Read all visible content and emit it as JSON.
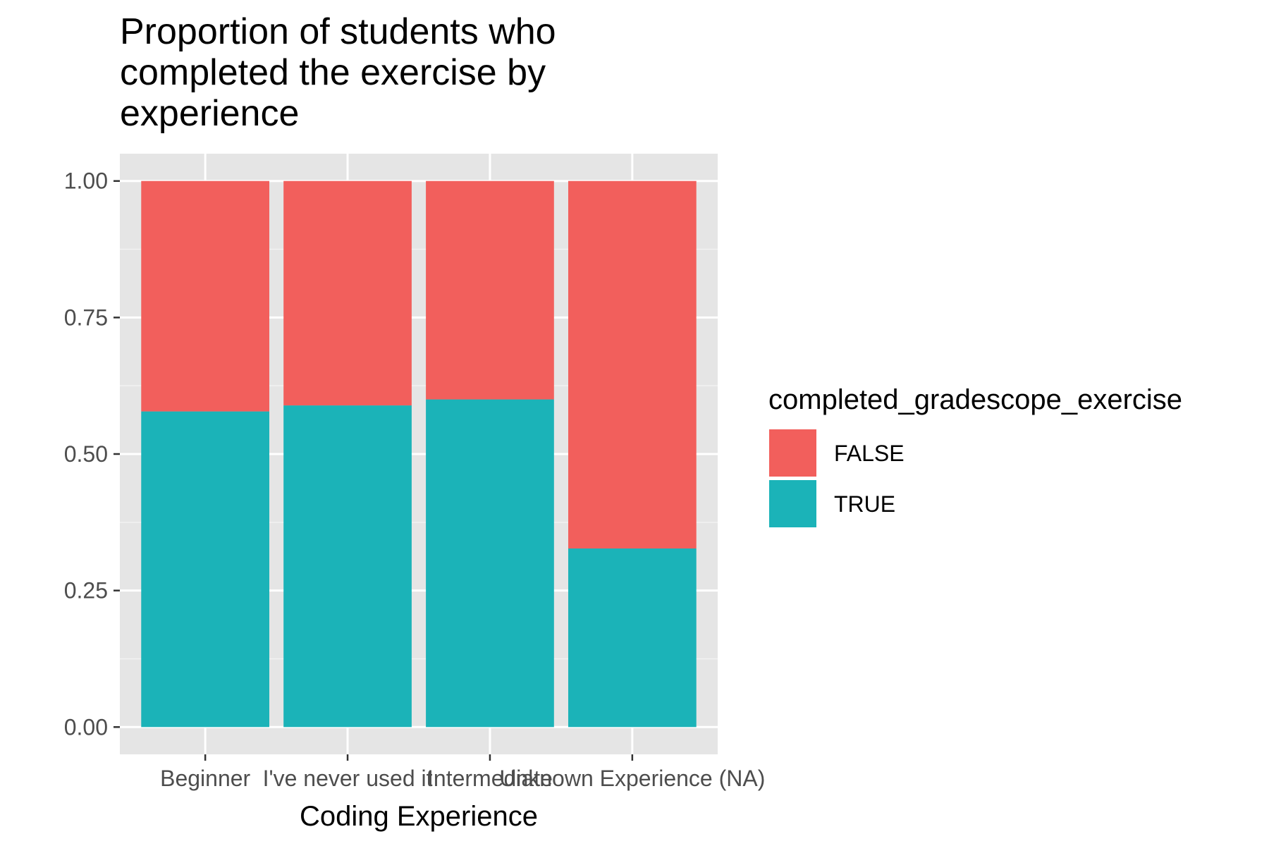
{
  "chart_data": {
    "type": "bar",
    "stacked": true,
    "title_lines": [
      "Proportion of students who",
      "completed the exercise by",
      "experience"
    ],
    "xlabel": "Coding Experience",
    "ylabel": "",
    "categories": [
      "Beginner",
      "I've never used it",
      "Intermediate",
      "Unknown Experience (NA)"
    ],
    "ylim": [
      0,
      1
    ],
    "yticks": [
      "0.00",
      "0.25",
      "0.50",
      "0.75",
      "1.00"
    ],
    "ytick_values": [
      0,
      0.25,
      0.5,
      0.75,
      1
    ],
    "grid": true,
    "legend": {
      "title": "completed_gradescope_exercise",
      "position": "right",
      "entries": [
        "FALSE",
        "TRUE"
      ]
    },
    "series": [
      {
        "name": "TRUE",
        "color": "#1BB3B8",
        "values": [
          0.578,
          0.589,
          0.6,
          0.327
        ]
      },
      {
        "name": "FALSE",
        "color": "#F25F5C",
        "values": [
          0.422,
          0.411,
          0.4,
          0.673
        ]
      }
    ]
  },
  "colors": {
    "panel_background": "#E5E5E5",
    "grid_major": "#FFFFFF",
    "grid_minor": "#F2F2F2",
    "tick_text": "#4D4D4D",
    "tick_mark": "#333333"
  }
}
